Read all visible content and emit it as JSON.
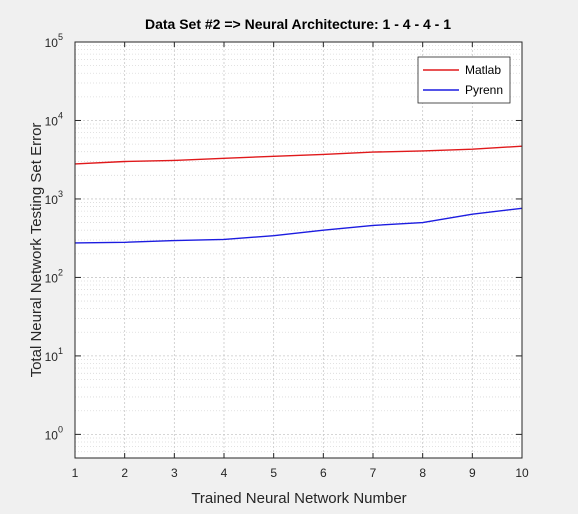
{
  "chart_data": {
    "type": "line",
    "title": "Data Set #2 => Neural Architecture: 1 - 4 - 4 - 1",
    "xlabel": "Trained Neural Network Number",
    "ylabel": "Total Neural Network Testing Set Error",
    "x": [
      1,
      2,
      3,
      4,
      5,
      6,
      7,
      8,
      9,
      10
    ],
    "xlim": [
      1,
      10
    ],
    "ylim": [
      0.5,
      100000
    ],
    "yscale": "log",
    "xticks": [
      "1",
      "2",
      "3",
      "4",
      "5",
      "6",
      "7",
      "8",
      "9",
      "10"
    ],
    "yticks": [
      {
        "base": "10",
        "exp": "0",
        "value": 1
      },
      {
        "base": "10",
        "exp": "1",
        "value": 10
      },
      {
        "base": "10",
        "exp": "2",
        "value": 100
      },
      {
        "base": "10",
        "exp": "3",
        "value": 1000
      },
      {
        "base": "10",
        "exp": "4",
        "value": 10000
      },
      {
        "base": "10",
        "exp": "5",
        "value": 100000
      }
    ],
    "grid": true,
    "minor_grid": true,
    "legend_position": "top-right",
    "series": [
      {
        "name": "Matlab",
        "color": "#e0191b",
        "values": [
          2800,
          3000,
          3100,
          3300,
          3500,
          3700,
          3950,
          4100,
          4300,
          4700
        ]
      },
      {
        "name": "Pyrenn",
        "color": "#1c1ce0",
        "values": [
          275,
          280,
          295,
          305,
          340,
          400,
          460,
          500,
          640,
          760
        ]
      }
    ]
  }
}
